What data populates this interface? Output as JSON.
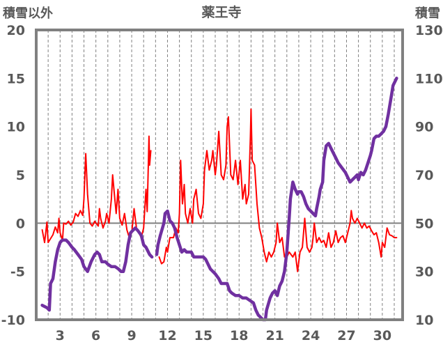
{
  "chart_data": {
    "type": "line",
    "title": "薬王寺",
    "ylabel_left": "積雪以外",
    "ylabel_right": "積雪",
    "xlim": [
      1,
      31.7
    ],
    "ylim_left": [
      -10,
      20
    ],
    "ylim_right": [
      10,
      130
    ],
    "y_ticks_left": [
      "20",
      "15",
      "10",
      "5",
      "0",
      "-5",
      "-10"
    ],
    "y_ticks_right": [
      "130",
      "110",
      "90",
      "70",
      "50",
      "30",
      "10"
    ],
    "x_ticks": [
      "3",
      "6",
      "9",
      "12",
      "15",
      "18",
      "21",
      "24",
      "27",
      "30"
    ],
    "grid": "vertical dashed, daily",
    "colors": {
      "temperature": "#ff0000",
      "snow": "#7030a0",
      "frame": "#808080"
    },
    "series": [
      {
        "axis": "left",
        "points": [
          [
            1.5,
            -0.7
          ],
          [
            1.7,
            -2.0
          ],
          [
            1.9,
            0.1
          ],
          [
            2.0,
            -2.0
          ],
          [
            2.2,
            -1.6
          ],
          [
            2.4,
            -1.2
          ],
          [
            2.6,
            -0.4
          ],
          [
            2.8,
            -1.0
          ],
          [
            2.9,
            0.5
          ],
          [
            3.0,
            -1.0
          ],
          [
            3.2,
            -1.8
          ],
          [
            3.3,
            0.0
          ],
          [
            3.5,
            -0.1
          ],
          [
            3.7,
            0.2
          ],
          [
            3.9,
            -0.2
          ],
          [
            4.1,
            0.1
          ],
          [
            4.3,
            1.0
          ],
          [
            4.5,
            0.7
          ],
          [
            4.7,
            1.3
          ],
          [
            4.9,
            0.8
          ],
          [
            5.0,
            2.5
          ],
          [
            5.15,
            7.2
          ],
          [
            5.3,
            3.0
          ],
          [
            5.5,
            0.0
          ],
          [
            5.7,
            -0.3
          ],
          [
            5.9,
            0.2
          ],
          [
            6.0,
            0.0
          ],
          [
            6.2,
            -0.3
          ],
          [
            6.3,
            1.5
          ],
          [
            6.4,
            0.5
          ],
          [
            6.6,
            -0.5
          ],
          [
            6.8,
            0.2
          ],
          [
            6.9,
            1.0
          ],
          [
            7.1,
            0.0
          ],
          [
            7.3,
            2.5
          ],
          [
            7.4,
            5.0
          ],
          [
            7.55,
            3.0
          ],
          [
            7.7,
            1.0
          ],
          [
            7.85,
            3.5
          ],
          [
            8.0,
            0.5
          ],
          [
            8.2,
            -0.2
          ],
          [
            8.4,
            1.0
          ],
          [
            8.6,
            -0.7
          ],
          [
            8.8,
            -1.5
          ],
          [
            9.0,
            -1.0
          ],
          [
            9.2,
            1.5
          ],
          [
            9.4,
            -0.5
          ],
          [
            9.6,
            -1.0
          ],
          [
            9.8,
            -1.5
          ],
          [
            10.0,
            -0.5
          ],
          [
            10.1,
            1.5
          ],
          [
            10.2,
            3.5
          ],
          [
            10.3,
            1.2
          ],
          [
            10.4,
            6.5
          ],
          [
            10.45,
            9.0
          ],
          [
            10.5,
            6.0
          ],
          [
            10.6,
            7.5
          ],
          null,
          [
            11.3,
            -3.5
          ],
          [
            11.5,
            -4.2
          ],
          [
            11.7,
            -4.0
          ],
          [
            11.9,
            -2.5
          ],
          [
            12.0,
            -3.0
          ],
          [
            12.2,
            -1.5
          ],
          [
            12.5,
            -1.5
          ],
          [
            12.7,
            -0.5
          ],
          [
            12.9,
            -1.0
          ],
          [
            13.0,
            1.0
          ],
          [
            13.1,
            6.5
          ],
          [
            13.25,
            2.0
          ],
          [
            13.4,
            4.0
          ],
          [
            13.5,
            1.0
          ],
          [
            13.7,
            0.0
          ],
          [
            13.9,
            1.5
          ],
          [
            14.1,
            0.0
          ],
          [
            14.2,
            2.5
          ],
          [
            14.4,
            3.5
          ],
          [
            14.6,
            1.0
          ],
          [
            14.8,
            0.5
          ],
          [
            15.0,
            2.0
          ],
          [
            15.1,
            5.5
          ],
          [
            15.3,
            7.5
          ],
          [
            15.5,
            5.5
          ],
          [
            15.7,
            6.5
          ],
          [
            15.8,
            7.5
          ],
          [
            16.0,
            5.0
          ],
          [
            16.1,
            6.0
          ],
          [
            16.3,
            9.5
          ],
          [
            16.5,
            5.0
          ],
          [
            16.7,
            4.5
          ],
          [
            16.9,
            6.0
          ],
          [
            17.0,
            10.0
          ],
          [
            17.1,
            11.0
          ],
          [
            17.3,
            5.0
          ],
          [
            17.5,
            4.5
          ],
          [
            17.7,
            6.5
          ],
          [
            17.9,
            4.0
          ],
          [
            18.1,
            6.5
          ],
          [
            18.3,
            2.5
          ],
          [
            18.5,
            4.0
          ],
          [
            18.6,
            2.0
          ],
          [
            18.8,
            3.0
          ],
          [
            18.95,
            9.0
          ],
          [
            19.0,
            11.8
          ],
          [
            19.1,
            6.5
          ],
          [
            19.3,
            6.0
          ],
          [
            19.5,
            2.0
          ],
          [
            19.7,
            -0.5
          ],
          [
            19.9,
            -1.5
          ],
          [
            20.1,
            -3.0
          ],
          [
            20.3,
            -4.0
          ],
          [
            20.5,
            -3.0
          ],
          [
            20.7,
            -3.5
          ],
          [
            20.9,
            -3.0
          ],
          [
            21.1,
            -2.0
          ],
          [
            21.2,
            0.0
          ],
          [
            21.4,
            -2.0
          ],
          [
            21.6,
            -1.5
          ],
          [
            21.8,
            -3.5
          ],
          [
            22.0,
            -3.5
          ],
          [
            22.2,
            -3.0
          ],
          [
            22.5,
            -3.5
          ],
          [
            22.7,
            -3.0
          ],
          [
            22.9,
            -5.0
          ],
          [
            23.1,
            -3.0
          ],
          [
            23.3,
            -2.5
          ],
          [
            23.5,
            0.5
          ],
          [
            23.7,
            -2.5
          ],
          [
            23.9,
            -3.0
          ],
          [
            24.1,
            -2.5
          ],
          [
            24.2,
            -1.5
          ],
          [
            24.3,
            0.0
          ],
          [
            24.5,
            -2.0
          ],
          [
            24.7,
            -1.5
          ],
          [
            24.9,
            -2.0
          ],
          [
            25.1,
            -1.8
          ],
          [
            25.3,
            -2.5
          ],
          [
            25.5,
            -1.0
          ],
          [
            25.7,
            -2.5
          ],
          [
            25.9,
            -2.0
          ],
          [
            26.1,
            -0.8
          ],
          [
            26.3,
            -2.0
          ],
          [
            26.5,
            -1.5
          ],
          [
            26.7,
            -1.3
          ],
          [
            26.9,
            -2.0
          ],
          [
            27.1,
            -1.0
          ],
          [
            27.3,
            0.0
          ],
          [
            27.4,
            1.3
          ],
          [
            27.5,
            0.5
          ],
          [
            27.7,
            0.0
          ],
          [
            27.9,
            0.5
          ],
          [
            28.1,
            0.0
          ],
          [
            28.3,
            -0.5
          ],
          [
            28.5,
            0.0
          ],
          [
            28.7,
            -0.5
          ],
          [
            28.9,
            -0.3
          ],
          [
            29.1,
            -0.8
          ],
          [
            29.3,
            -1.2
          ],
          [
            29.5,
            -1.0
          ],
          [
            29.7,
            -2.0
          ],
          [
            29.9,
            -3.5
          ],
          [
            30.0,
            -2.0
          ],
          [
            30.2,
            -2.5
          ],
          [
            30.4,
            -0.5
          ],
          [
            30.6,
            -1.2
          ],
          [
            30.8,
            -1.3
          ],
          [
            31.0,
            -1.5
          ],
          [
            31.2,
            -1.5
          ]
        ]
      },
      {
        "axis": "right",
        "points": [
          [
            1.5,
            16
          ],
          [
            1.9,
            15
          ],
          [
            2.1,
            14
          ],
          [
            2.2,
            25
          ],
          [
            2.4,
            27
          ],
          [
            2.6,
            34
          ],
          [
            2.8,
            39
          ],
          [
            3.0,
            42
          ],
          [
            3.2,
            43
          ],
          [
            3.5,
            43
          ],
          [
            3.7,
            42
          ],
          [
            4.0,
            40
          ],
          [
            4.2,
            39
          ],
          [
            4.5,
            37
          ],
          [
            4.8,
            35
          ],
          [
            5.0,
            32
          ],
          [
            5.3,
            30
          ],
          [
            5.6,
            34
          ],
          [
            5.9,
            37
          ],
          [
            6.1,
            38
          ],
          [
            6.3,
            37
          ],
          [
            6.5,
            34
          ],
          [
            6.8,
            34
          ],
          [
            7.0,
            33
          ],
          [
            7.3,
            32
          ],
          [
            7.6,
            32
          ],
          [
            7.9,
            31
          ],
          [
            8.1,
            30
          ],
          [
            8.3,
            30
          ],
          [
            8.5,
            34
          ],
          [
            8.7,
            41
          ],
          [
            8.9,
            46
          ],
          [
            9.1,
            47
          ],
          [
            9.3,
            48
          ],
          [
            9.5,
            47
          ],
          [
            9.8,
            45
          ],
          [
            10.0,
            41
          ],
          [
            10.2,
            40
          ],
          [
            10.5,
            37
          ],
          [
            10.7,
            36
          ],
          null,
          [
            11.1,
            37
          ],
          [
            11.2,
            41
          ],
          [
            11.4,
            45
          ],
          [
            11.7,
            50
          ],
          [
            11.8,
            54
          ],
          [
            12.0,
            55
          ],
          [
            12.2,
            51
          ],
          [
            12.4,
            50
          ],
          [
            12.6,
            48
          ],
          [
            12.8,
            44
          ],
          [
            13.0,
            41
          ],
          [
            13.2,
            38
          ],
          [
            13.4,
            39
          ],
          [
            13.6,
            38
          ],
          [
            13.8,
            38
          ],
          [
            14.0,
            38
          ],
          [
            14.2,
            36
          ],
          [
            14.5,
            36
          ],
          [
            14.8,
            36
          ],
          [
            15.0,
            36
          ],
          [
            15.2,
            35
          ],
          [
            15.4,
            33
          ],
          [
            15.6,
            31
          ],
          [
            15.8,
            30
          ],
          [
            16.0,
            29
          ],
          [
            16.3,
            27
          ],
          [
            16.5,
            25
          ],
          [
            16.7,
            25
          ],
          [
            17.0,
            25
          ],
          [
            17.2,
            22
          ],
          [
            17.4,
            21
          ],
          [
            17.7,
            20
          ],
          [
            18.0,
            20
          ],
          [
            18.3,
            19
          ],
          [
            18.6,
            19
          ],
          [
            18.9,
            18
          ],
          [
            19.2,
            17
          ],
          [
            19.4,
            14
          ],
          [
            19.6,
            12
          ],
          [
            19.8,
            11
          ],
          [
            20.0,
            10
          ],
          [
            20.2,
            10
          ],
          [
            20.3,
            14
          ],
          [
            20.6,
            19
          ],
          [
            20.8,
            21
          ],
          [
            21.0,
            22
          ],
          [
            21.2,
            20
          ],
          [
            21.4,
            24
          ],
          [
            21.6,
            26
          ],
          [
            21.8,
            30
          ],
          [
            22.0,
            38
          ],
          [
            22.2,
            52
          ],
          [
            22.3,
            60
          ],
          [
            22.5,
            67
          ],
          [
            22.7,
            64
          ],
          [
            22.9,
            62
          ],
          [
            23.0,
            63
          ],
          [
            23.2,
            63
          ],
          [
            23.4,
            61
          ],
          [
            23.6,
            58
          ],
          [
            23.8,
            56
          ],
          [
            24.0,
            55
          ],
          [
            24.2,
            54
          ],
          [
            24.4,
            53
          ],
          [
            24.5,
            56
          ],
          [
            24.7,
            61
          ],
          [
            24.8,
            64
          ],
          [
            25.0,
            67
          ],
          [
            25.1,
            76
          ],
          [
            25.3,
            82
          ],
          [
            25.5,
            83
          ],
          [
            25.7,
            81
          ],
          [
            25.9,
            79
          ],
          [
            26.1,
            77
          ],
          [
            26.3,
            75
          ],
          [
            26.6,
            73
          ],
          [
            26.9,
            71
          ],
          [
            27.1,
            69
          ],
          [
            27.3,
            67
          ],
          [
            27.5,
            68
          ],
          [
            27.7,
            69
          ],
          [
            27.9,
            70
          ],
          [
            28.0,
            68
          ],
          [
            28.2,
            71
          ],
          [
            28.4,
            70
          ],
          [
            28.6,
            72
          ],
          [
            28.8,
            75
          ],
          [
            29.0,
            78
          ],
          [
            29.1,
            80
          ],
          [
            29.3,
            85
          ],
          [
            29.5,
            86
          ],
          [
            29.7,
            86
          ],
          [
            29.9,
            87
          ],
          [
            30.1,
            88
          ],
          [
            30.3,
            90
          ],
          [
            30.5,
            95
          ],
          [
            30.7,
            101
          ],
          [
            30.9,
            107
          ],
          [
            31.0,
            108
          ],
          [
            31.2,
            110
          ]
        ]
      }
    ]
  }
}
